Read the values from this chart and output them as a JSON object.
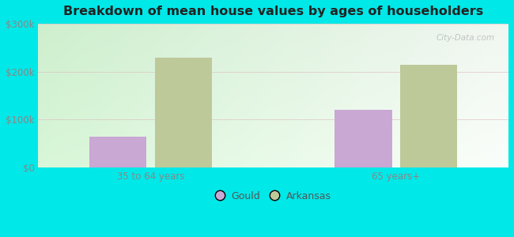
{
  "title": "Breakdown of mean house values by ages of householders",
  "categories": [
    "35 to 64 years",
    "65 years+"
  ],
  "series": {
    "Gould": [
      65000,
      120000
    ],
    "Arkansas": [
      230000,
      215000
    ]
  },
  "bar_colors": {
    "Gould": "#c9a8d4",
    "Arkansas": "#bec99a"
  },
  "ylim": [
    0,
    300000
  ],
  "yticks": [
    0,
    100000,
    200000,
    300000
  ],
  "ytick_labels": [
    "$0",
    "$100k",
    "$200k",
    "$300k"
  ],
  "background_color": "#00e8e8",
  "bar_width": 0.28,
  "legend_labels": [
    "Gould",
    "Arkansas"
  ],
  "watermark": "City-Data.com"
}
